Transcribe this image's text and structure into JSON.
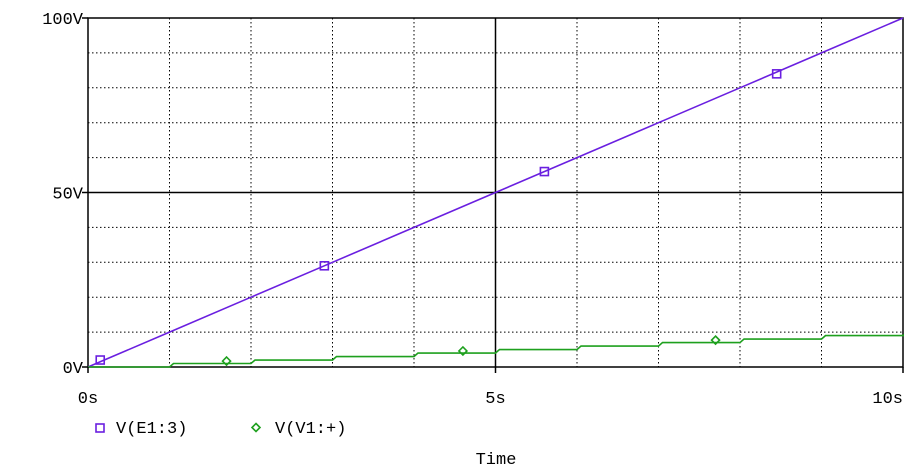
{
  "chart_data": {
    "type": "line",
    "xlabel": "Time",
    "ylabel": "",
    "xlim": [
      0,
      10
    ],
    "ylim": [
      0,
      100
    ],
    "x_ticks": [
      {
        "value": 0,
        "label": "0s"
      },
      {
        "value": 5,
        "label": "5s"
      },
      {
        "value": 10,
        "label": "10s"
      }
    ],
    "y_ticks": [
      {
        "value": 0,
        "label": "0V"
      },
      {
        "value": 50,
        "label": "50V"
      },
      {
        "value": 100,
        "label": "100V"
      }
    ],
    "minor_grid_x_step": 1,
    "minor_grid_y_step": 10,
    "grid": true,
    "legend_position": "bottom-left",
    "series": [
      {
        "name": "V(E1:3)",
        "color": "#6a1fe0",
        "marker": "square",
        "x": [
          0,
          0.25,
          0.5,
          1,
          2,
          3,
          4,
          5,
          6,
          7,
          8,
          9,
          10
        ],
        "y": [
          0,
          2.5,
          5,
          10,
          20,
          30,
          40,
          50,
          60,
          70,
          80,
          90,
          100
        ],
        "marker_points": [
          {
            "x": 0.15,
            "y": 2
          },
          {
            "x": 2.9,
            "y": 29
          },
          {
            "x": 5.6,
            "y": 56
          },
          {
            "x": 8.45,
            "y": 84
          }
        ]
      },
      {
        "name": "V(V1:+)",
        "color": "#1ea01e",
        "marker": "diamond",
        "x": [
          0,
          1,
          2,
          3,
          4,
          5,
          6,
          7,
          8,
          9,
          10
        ],
        "y": [
          0,
          1,
          2,
          3,
          4,
          5,
          6,
          7,
          8,
          9,
          10
        ],
        "marker_points": [
          {
            "x": 1.7,
            "y": 1.7
          },
          {
            "x": 4.6,
            "y": 4.6
          },
          {
            "x": 7.7,
            "y": 7.7
          }
        ]
      }
    ]
  }
}
